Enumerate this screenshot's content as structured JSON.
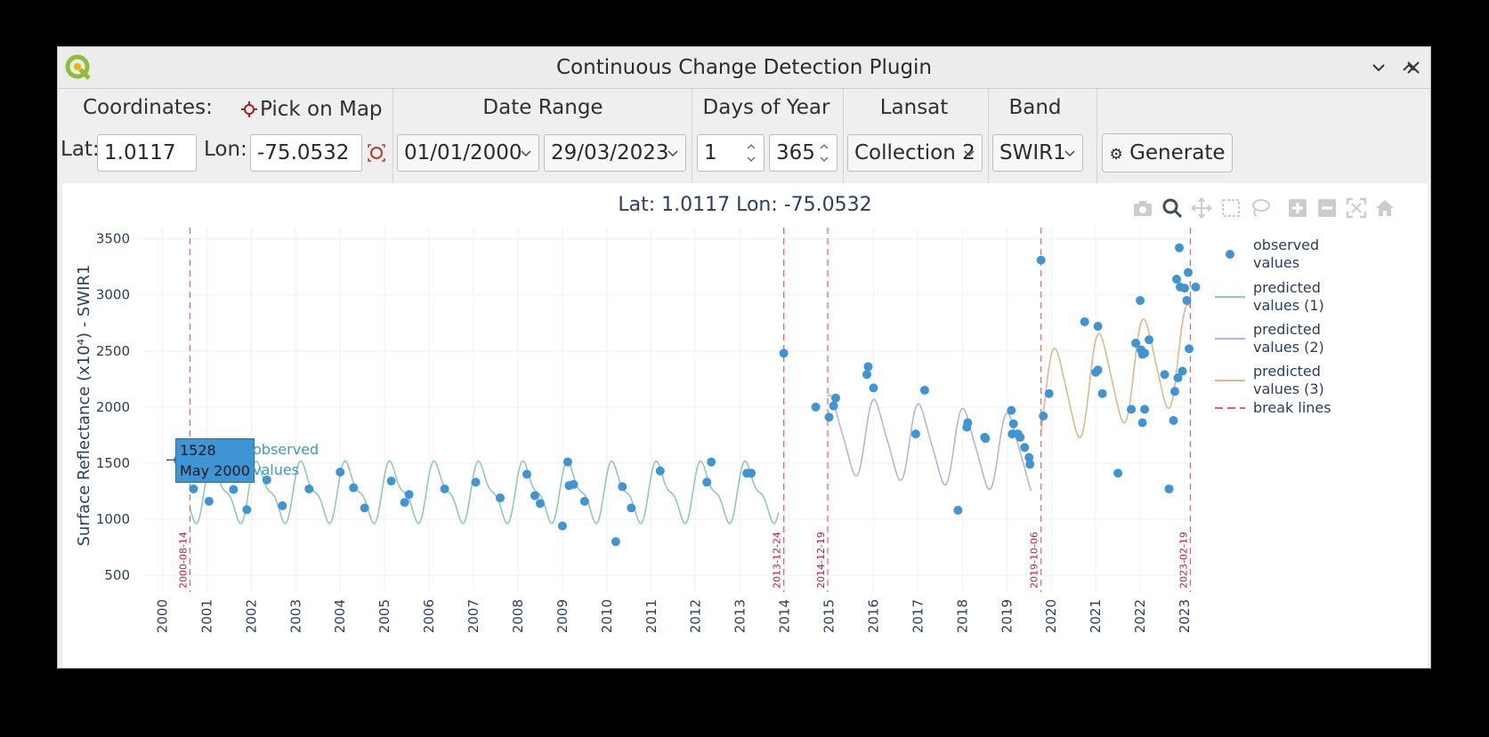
{
  "window": {
    "title": "Continuous Change Detection Plugin",
    "minimize_icon": "chevron-down-icon",
    "maximize_icon": "chevron-up-icon",
    "close_icon": "close-icon"
  },
  "toolbar": {
    "coordinates_label": "Coordinates:",
    "pick_on_map_label": "Pick on Map",
    "lat_label": "Lat:",
    "lat_value": "1.0117",
    "lon_label": "Lon:",
    "lon_value": "-75.0532",
    "date_range_label": "Date Range",
    "date_start": "01/01/2000",
    "date_end": "29/03/2023",
    "doy_label": "Days of Year",
    "doy_start": "1",
    "doy_end": "365",
    "landsat_label": "Lansat",
    "landsat_value": "Collection 2",
    "band_label": "Band",
    "band_value": "SWIR1",
    "generate_label": "Generate"
  },
  "plot": {
    "title": "Lat: 1.0117 Lon: -75.0532",
    "modebar": [
      "camera-icon",
      "zoom-icon",
      "pan-icon",
      "box-select-icon",
      "lasso-select-icon",
      "zoom-in-icon",
      "zoom-out-icon",
      "autoscale-icon",
      "reset-axes-icon"
    ],
    "legend": [
      {
        "label_line1": "observed",
        "label_line2": "values",
        "color": "#3f95d3"
      },
      {
        "label_line1": "predicted",
        "label_line2": "values (1)",
        "color": "#8fcca9"
      },
      {
        "label_line1": "predicted",
        "label_line2": "values (2)",
        "color": "#b8b2e0"
      },
      {
        "label_line1": "predicted",
        "label_line2": "values (3)",
        "color": "#dcb98b"
      },
      {
        "label_line1": "break lines",
        "label_line2": "",
        "color": "#e8606a"
      }
    ],
    "hover": {
      "value": "1528",
      "date": "May 2000",
      "label_line1": "observed",
      "label_line2": "values"
    }
  },
  "chart_data": {
    "type": "scatter",
    "title": "Lat: 1.0117 Lon: -75.0532",
    "xlabel": "",
    "ylabel": "Surface Reflectance (x10⁴) - SWIR1",
    "x_ticks": [
      "2000",
      "2001",
      "2002",
      "2003",
      "2004",
      "2005",
      "2006",
      "2007",
      "2008",
      "2009",
      "2010",
      "2011",
      "2012",
      "2013",
      "2014",
      "2015",
      "2016",
      "2017",
      "2018",
      "2019",
      "2020",
      "2021",
      "2022",
      "2023"
    ],
    "y_ticks": [
      500,
      1000,
      1500,
      2000,
      2500,
      3000,
      3500
    ],
    "xlim": [
      1999.55,
      2023.1
    ],
    "ylim": [
      350,
      3600
    ],
    "grid": true,
    "legend_position": "right",
    "break_lines": [
      {
        "label": "2000-08-14",
        "x": 2000.62
      },
      {
        "label": "2013-12-24",
        "x": 2013.98
      },
      {
        "label": "2014-12-19",
        "x": 2014.97
      },
      {
        "label": "2019-10-06",
        "x": 2019.77
      },
      {
        "label": "2023-02-19",
        "x": 2023.13
      }
    ],
    "observed": [
      [
        2000.35,
        1528
      ],
      [
        2000.7,
        1270
      ],
      [
        2001.05,
        1160
      ],
      [
        2001.3,
        1450
      ],
      [
        2001.6,
        1265
      ],
      [
        2001.9,
        1085
      ],
      [
        2002.35,
        1350
      ],
      [
        2002.7,
        1120
      ],
      [
        2003.3,
        1270
      ],
      [
        2004.0,
        1420
      ],
      [
        2004.3,
        1280
      ],
      [
        2004.55,
        1100
      ],
      [
        2005.15,
        1340
      ],
      [
        2005.45,
        1150
      ],
      [
        2005.55,
        1220
      ],
      [
        2006.35,
        1270
      ],
      [
        2007.05,
        1330
      ],
      [
        2007.6,
        1190
      ],
      [
        2008.2,
        1400
      ],
      [
        2008.38,
        1210
      ],
      [
        2008.5,
        1140
      ],
      [
        2009.0,
        940
      ],
      [
        2009.12,
        1510
      ],
      [
        2009.15,
        1300
      ],
      [
        2009.25,
        1310
      ],
      [
        2009.5,
        1160
      ],
      [
        2010.2,
        800
      ],
      [
        2010.35,
        1290
      ],
      [
        2010.55,
        1100
      ],
      [
        2011.2,
        1430
      ],
      [
        2012.25,
        1330
      ],
      [
        2012.35,
        1510
      ],
      [
        2013.15,
        1410
      ],
      [
        2013.25,
        1410
      ],
      [
        2013.98,
        2480
      ],
      [
        2014.7,
        2000
      ],
      [
        2015.0,
        1910
      ],
      [
        2015.1,
        2010
      ],
      [
        2015.15,
        2080
      ],
      [
        2015.85,
        2290
      ],
      [
        2015.88,
        2360
      ],
      [
        2016.0,
        2170
      ],
      [
        2016.95,
        1760
      ],
      [
        2017.15,
        2150
      ],
      [
        2017.9,
        1080
      ],
      [
        2018.1,
        1820
      ],
      [
        2018.12,
        1860
      ],
      [
        2018.5,
        1730
      ],
      [
        2018.52,
        1720
      ],
      [
        2019.1,
        1970
      ],
      [
        2019.12,
        1760
      ],
      [
        2019.15,
        1850
      ],
      [
        2019.25,
        1760
      ],
      [
        2019.3,
        1730
      ],
      [
        2019.4,
        1640
      ],
      [
        2019.5,
        1550
      ],
      [
        2019.52,
        1490
      ],
      [
        2019.77,
        3310
      ],
      [
        2019.82,
        1920
      ],
      [
        2019.95,
        2120
      ],
      [
        2020.75,
        2760
      ],
      [
        2021.05,
        2720
      ],
      [
        2021.0,
        2310
      ],
      [
        2021.05,
        2330
      ],
      [
        2021.15,
        2120
      ],
      [
        2021.5,
        1410
      ],
      [
        2021.8,
        1980
      ],
      [
        2021.9,
        2570
      ],
      [
        2022.0,
        2950
      ],
      [
        2022.02,
        2510
      ],
      [
        2022.05,
        1860
      ],
      [
        2022.05,
        2470
      ],
      [
        2022.1,
        2480
      ],
      [
        2022.1,
        1980
      ],
      [
        2022.2,
        2600
      ],
      [
        2022.55,
        2290
      ],
      [
        2022.65,
        1270
      ],
      [
        2022.75,
        1880
      ],
      [
        2022.78,
        2140
      ],
      [
        2022.82,
        3140
      ],
      [
        2022.85,
        2260
      ],
      [
        2022.88,
        3420
      ],
      [
        2022.9,
        3070
      ],
      [
        2022.95,
        2320
      ],
      [
        2023.0,
        3060
      ],
      [
        2023.05,
        2950
      ],
      [
        2023.08,
        3200
      ],
      [
        2023.1,
        2520
      ],
      [
        2023.25,
        3070
      ]
    ],
    "segments": [
      {
        "name": "predicted values (1)",
        "color": "#8fcca9",
        "x_start": 2000.62,
        "x_end": 2013.86,
        "mean": 1240,
        "amp1": 230,
        "amp2": 90,
        "phase": 0.4,
        "trend": 0
      },
      {
        "name": "predicted values (2)",
        "color": "#b8b2e0",
        "x_start": 2014.97,
        "x_end": 2019.55,
        "mean": 1760,
        "amp1": 330,
        "amp2": 60,
        "phase": 1.2,
        "trend": -40
      },
      {
        "name": "predicted values (3)",
        "color": "#dcb98b",
        "x_start": 2019.77,
        "x_end": 2023.13,
        "mean": 2050,
        "amp1": 420,
        "amp2": 60,
        "phase": 0.9,
        "trend": 130
      }
    ]
  }
}
